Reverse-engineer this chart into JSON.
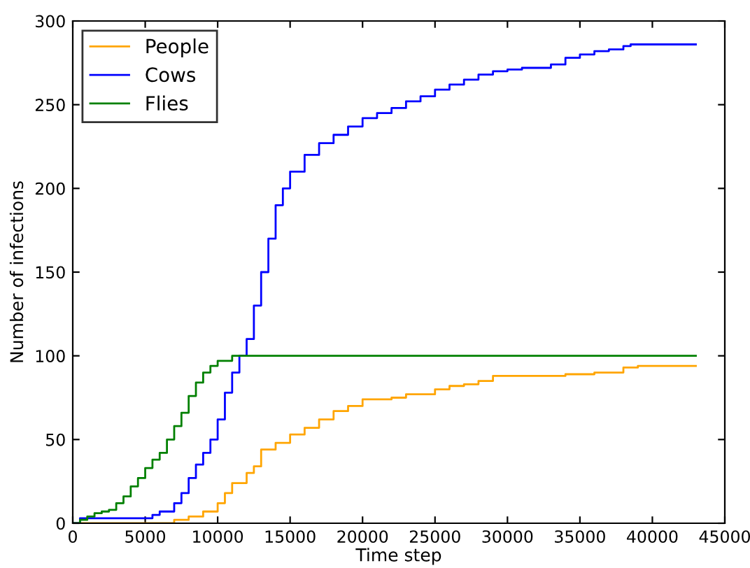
{
  "chart_data": {
    "type": "step",
    "xlabel": "Time step",
    "ylabel": "Number of infections",
    "xlim": [
      0,
      45000
    ],
    "ylim": [
      0,
      300
    ],
    "xticks": [
      0,
      5000,
      10000,
      15000,
      20000,
      25000,
      30000,
      35000,
      40000,
      45000
    ],
    "yticks": [
      0,
      50,
      100,
      150,
      200,
      250,
      300
    ],
    "grid": false,
    "legend": "top left",
    "marker": "none",
    "line_style": "solid",
    "series": [
      {
        "name": "People",
        "color": "#ffa500",
        "x": [
          0,
          5000,
          7000,
          8000,
          9000,
          10000,
          10500,
          11000,
          12000,
          12500,
          13000,
          14000,
          15000,
          16000,
          17000,
          18000,
          19000,
          20000,
          22000,
          23000,
          25000,
          26000,
          27000,
          28000,
          29000,
          32000,
          34000,
          36000,
          38000,
          39000,
          43000
        ],
        "values": [
          0,
          0,
          2,
          4,
          7,
          12,
          18,
          24,
          30,
          34,
          44,
          48,
          53,
          57,
          62,
          67,
          70,
          74,
          75,
          77,
          80,
          82,
          83,
          85,
          88,
          88,
          89,
          90,
          93,
          94,
          94
        ]
      },
      {
        "name": "Cows",
        "color": "#0000ff",
        "x": [
          0,
          500,
          1000,
          5000,
          5500,
          6000,
          7000,
          7500,
          8000,
          8500,
          9000,
          9500,
          10000,
          10500,
          11000,
          11500,
          12000,
          12500,
          13000,
          13500,
          14000,
          14500,
          15000,
          16000,
          17000,
          18000,
          19000,
          20000,
          21000,
          22000,
          23000,
          24000,
          25000,
          26000,
          27000,
          28000,
          29000,
          30000,
          31000,
          32000,
          33000,
          34000,
          35000,
          36000,
          37000,
          38000,
          38500,
          43000
        ],
        "values": [
          0,
          3,
          3,
          3,
          5,
          7,
          12,
          18,
          27,
          35,
          42,
          50,
          62,
          78,
          90,
          100,
          110,
          130,
          150,
          170,
          190,
          200,
          210,
          220,
          227,
          232,
          237,
          242,
          245,
          248,
          252,
          255,
          259,
          262,
          265,
          268,
          270,
          271,
          272,
          272,
          274,
          278,
          280,
          282,
          283,
          285,
          286,
          286
        ]
      },
      {
        "name": "Flies",
        "color": "#008000",
        "x": [
          0,
          500,
          1000,
          1500,
          2000,
          2500,
          3000,
          3500,
          4000,
          4500,
          5000,
          5500,
          6000,
          6500,
          7000,
          7500,
          8000,
          8500,
          9000,
          9500,
          10000,
          11000,
          43000
        ],
        "values": [
          0,
          2,
          4,
          6,
          7,
          8,
          12,
          16,
          22,
          27,
          33,
          38,
          42,
          50,
          58,
          66,
          76,
          84,
          90,
          94,
          97,
          100,
          100
        ]
      }
    ]
  }
}
